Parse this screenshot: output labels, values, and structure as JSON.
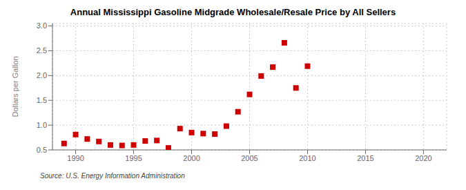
{
  "chart_data": {
    "type": "scatter",
    "title": "Annual Mississippi Gasoline Midgrade Wholesale/Resale Price by All Sellers",
    "ylabel": "Dollars per Gallon",
    "annotations": [
      "Source: U.S. Energy Information Administration"
    ],
    "x": [
      1989,
      1990,
      1991,
      1992,
      1993,
      1994,
      1995,
      1996,
      1997,
      1998,
      1999,
      2000,
      2001,
      2002,
      2003,
      2004,
      2005,
      2006,
      2007,
      2008,
      2009,
      2010
    ],
    "values": [
      0.63,
      0.81,
      0.72,
      0.67,
      0.6,
      0.59,
      0.6,
      0.68,
      0.69,
      0.54,
      0.93,
      0.85,
      0.83,
      0.82,
      0.98,
      1.27,
      1.62,
      1.99,
      2.17,
      2.66,
      1.75,
      2.19
    ],
    "xlim": [
      1988,
      2022
    ],
    "ylim": [
      0.5,
      3.05
    ],
    "xticks": [
      1990,
      1995,
      2000,
      2005,
      2010,
      2015,
      2020
    ],
    "yticks": [
      0.5,
      {
        "value": 1.0,
        "label": "1.0"
      },
      1.5,
      {
        "value": 2.0,
        "label": "2.0"
      },
      2.5,
      {
        "value": 3.0,
        "label": "3.0"
      }
    ],
    "color": "#cc0000",
    "marker": "square",
    "grid": true
  }
}
